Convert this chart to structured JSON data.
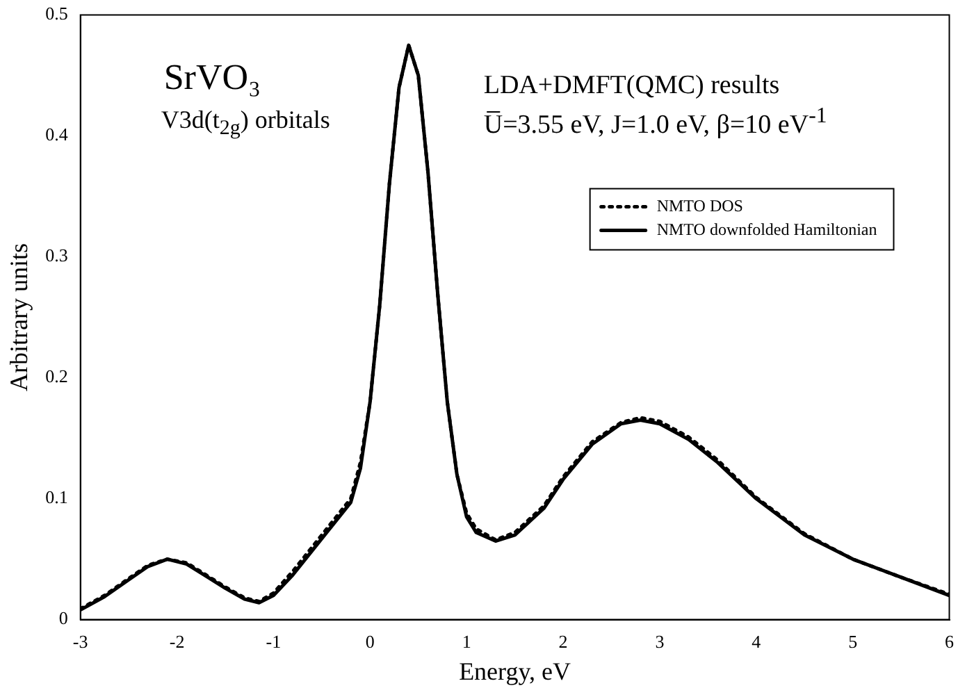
{
  "chart_data": {
    "type": "line",
    "xlabel": "Energy, eV",
    "ylabel": "Arbitrary units",
    "annotations": [
      "SrVO₃",
      "V3d(t$_{2g}$) orbitals",
      "LDA+DMFT(QMC) results",
      "U̅=3.55 eV, J=1.0 eV, β=10 eV$^{-1}$"
    ],
    "x": [
      -3,
      -2.75,
      -2.5,
      -2.3,
      -2.1,
      -1.9,
      -1.7,
      -1.5,
      -1.3,
      -1.15,
      -1,
      -0.8,
      -0.6,
      -0.4,
      -0.2,
      -0.1,
      0,
      0.1,
      0.2,
      0.3,
      0.4,
      0.5,
      0.6,
      0.7,
      0.8,
      0.9,
      1,
      1.1,
      1.3,
      1.5,
      1.8,
      2,
      2.3,
      2.6,
      2.8,
      3,
      3.3,
      3.6,
      4,
      4.5,
      5,
      5.5,
      6
    ],
    "series": [
      {
        "name": "NMTO DOS",
        "color": "#000000",
        "line_style": "dotted",
        "values": [
          0.009,
          0.02,
          0.034,
          0.045,
          0.05,
          0.047,
          0.037,
          0.027,
          0.018,
          0.015,
          0.022,
          0.04,
          0.06,
          0.08,
          0.1,
          0.13,
          0.18,
          0.26,
          0.36,
          0.44,
          0.475,
          0.45,
          0.37,
          0.27,
          0.18,
          0.12,
          0.088,
          0.075,
          0.066,
          0.072,
          0.094,
          0.118,
          0.147,
          0.163,
          0.167,
          0.164,
          0.151,
          0.132,
          0.101,
          0.071,
          0.05,
          0.035,
          0.021
        ]
      },
      {
        "name": "NMTO downfolded Hamiltonian",
        "color": "#000000",
        "line_style": "solid",
        "values": [
          0.008,
          0.019,
          0.033,
          0.044,
          0.05,
          0.046,
          0.036,
          0.026,
          0.017,
          0.014,
          0.02,
          0.037,
          0.057,
          0.077,
          0.097,
          0.125,
          0.18,
          0.26,
          0.36,
          0.44,
          0.475,
          0.45,
          0.37,
          0.27,
          0.18,
          0.12,
          0.085,
          0.072,
          0.065,
          0.07,
          0.092,
          0.116,
          0.145,
          0.162,
          0.165,
          0.162,
          0.149,
          0.13,
          0.1,
          0.07,
          0.05,
          0.035,
          0.02
        ]
      }
    ],
    "xlim": [
      -3,
      6
    ],
    "xticks": [
      -3,
      -2,
      -1,
      0,
      1,
      2,
      3,
      4,
      5,
      6
    ],
    "ylim": [
      0,
      0.5
    ],
    "yticks": [
      0,
      0.1,
      0.2,
      0.3,
      0.4,
      0.5
    ],
    "legend": "top right",
    "marker": "none",
    "grid": false
  }
}
